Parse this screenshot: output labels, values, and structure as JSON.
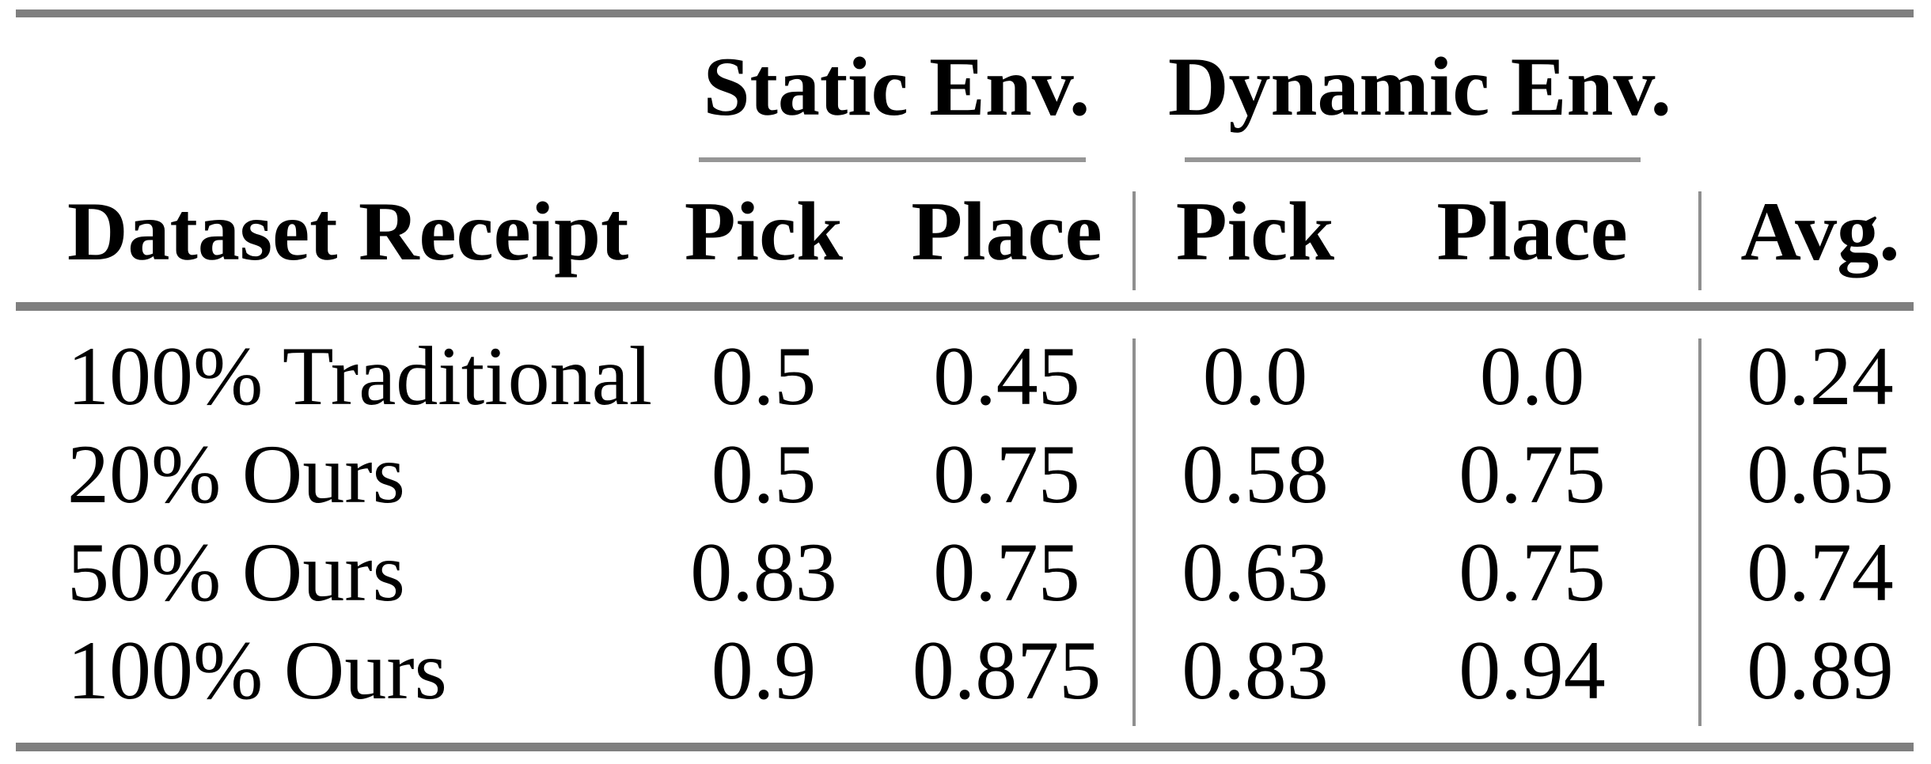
{
  "table": {
    "group_headers": {
      "static": "Static Env.",
      "dynamic": "Dynamic Env."
    },
    "column_headers": {
      "dataset": "Dataset Receipt",
      "static_pick": "Pick",
      "static_place": "Place",
      "dynamic_pick": "Pick",
      "dynamic_place": "Place",
      "avg": "Avg."
    },
    "rows": [
      {
        "dataset": "100% Traditional",
        "static_pick": "0.5",
        "static_place": "0.45",
        "dynamic_pick": "0.0",
        "dynamic_place": "0.0",
        "avg": "0.24"
      },
      {
        "dataset": "20% Ours",
        "static_pick": "0.5",
        "static_place": "0.75",
        "dynamic_pick": "0.58",
        "dynamic_place": "0.75",
        "avg": "0.65"
      },
      {
        "dataset": "50% Ours",
        "static_pick": "0.83",
        "static_place": "0.75",
        "dynamic_pick": "0.63",
        "dynamic_place": "0.75",
        "avg": "0.74"
      },
      {
        "dataset": "100% Ours",
        "static_pick": "0.9",
        "static_place": "0.875",
        "dynamic_pick": "0.83",
        "dynamic_place": "0.94",
        "avg": "0.89"
      }
    ]
  },
  "colors": {
    "background": "#ffffff",
    "text": "#000000",
    "rule_thick": "#7f7f7f",
    "rule_thin": "#969696",
    "rule_vline": "#8f8f8f"
  },
  "chart_data": {
    "type": "table",
    "columns": [
      "Dataset Receipt",
      "Static Env. Pick",
      "Static Env. Place",
      "Dynamic Env. Pick",
      "Dynamic Env. Place",
      "Avg."
    ],
    "rows": [
      [
        "100% Traditional",
        0.5,
        0.45,
        0.0,
        0.0,
        0.24
      ],
      [
        "20% Ours",
        0.5,
        0.75,
        0.58,
        0.75,
        0.65
      ],
      [
        "50% Ours",
        0.83,
        0.75,
        0.63,
        0.75,
        0.74
      ],
      [
        "100% Ours",
        0.9,
        0.875,
        0.83,
        0.94,
        0.89
      ]
    ]
  }
}
